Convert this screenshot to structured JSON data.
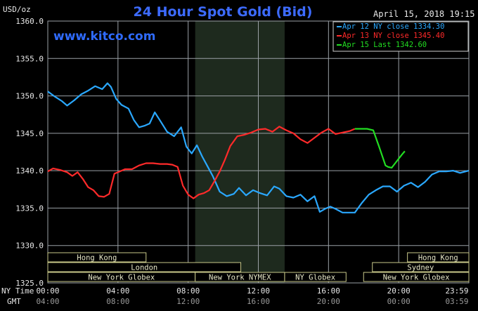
{
  "chart_data": {
    "type": "line",
    "title": "24 Hour Spot Gold (Bid)",
    "date_label": "April 15, 2018 19:15",
    "watermark": "www.kitco.com",
    "ylabel": "USD/oz",
    "ylim": [
      1325,
      1360
    ],
    "y_ticks": [
      "1360.0",
      "1355.0",
      "1350.0",
      "1345.0",
      "1340.0",
      "1335.0",
      "1330.0",
      "1325.0"
    ],
    "x_row_label_ny": "NY Time",
    "x_row_label_gmt": "GMT",
    "x_ticks_ny": [
      "00:00",
      "04:00",
      "08:00",
      "12:00",
      "16:00",
      "20:00",
      "23:59"
    ],
    "x_ticks_gmt": [
      "04:00",
      "08:00",
      "12:00",
      "16:00",
      "20:00",
      "00:00",
      "03:59"
    ],
    "legend": [
      {
        "label": "Apr 12 NY close 1334.30",
        "color": "#2aa8ff"
      },
      {
        "label": "Apr 13 NY close 1345.40",
        "color": "#ff2a2a"
      },
      {
        "label": "Apr 15 Last 1342.60",
        "color": "#22dd22"
      }
    ],
    "markets": [
      {
        "label": "Hong Kong",
        "start": 0.0,
        "end": 5.6
      },
      {
        "label": "Hong Kong",
        "start": 20.5,
        "end": 24.0
      },
      {
        "label": "London",
        "start": 0.0,
        "end": 11.0
      },
      {
        "label": "Sydney",
        "start": 18.5,
        "end": 24.0
      },
      {
        "label": "New York Globex",
        "start": 0.0,
        "end": 8.4
      },
      {
        "label": "New York NYMEX",
        "start": 8.4,
        "end": 13.5
      },
      {
        "label": "NY Globex",
        "start": 13.5,
        "end": 17.0
      },
      {
        "label": "New York Globex",
        "start": 18.0,
        "end": 24.0
      }
    ],
    "nymex_session": [
      8.4,
      13.5
    ],
    "series": [
      {
        "name": "Apr 12 NY close 1334.30",
        "color": "#2aa8ff",
        "x": [
          0.0,
          0.4,
          0.8,
          1.1,
          1.5,
          1.9,
          2.3,
          2.7,
          3.1,
          3.4,
          3.6,
          3.9,
          4.2,
          4.6,
          4.9,
          5.2,
          5.5,
          5.8,
          6.1,
          6.4,
          6.8,
          7.2,
          7.6,
          7.9,
          8.2,
          8.5,
          8.8,
          9.1,
          9.4,
          9.8,
          10.2,
          10.6,
          10.9,
          11.3,
          11.7,
          12.1,
          12.5,
          12.9,
          13.2,
          13.6,
          14.0,
          14.4,
          14.8,
          15.2,
          15.5,
          15.8,
          16.1,
          16.4,
          16.8,
          17.2,
          17.5,
          17.9,
          18.3,
          18.7,
          19.1,
          19.5,
          19.9,
          20.3,
          20.7,
          21.1,
          21.5,
          21.9,
          22.3,
          22.7,
          23.1,
          23.5,
          23.99
        ],
        "values": [
          1350.6,
          1349.9,
          1349.3,
          1348.7,
          1349.4,
          1350.2,
          1350.7,
          1351.3,
          1350.9,
          1351.7,
          1351.2,
          1349.6,
          1348.8,
          1348.3,
          1346.8,
          1345.8,
          1346.0,
          1346.3,
          1347.8,
          1346.7,
          1345.2,
          1344.6,
          1345.8,
          1343.2,
          1342.3,
          1343.4,
          1341.9,
          1340.6,
          1339.3,
          1337.2,
          1336.6,
          1336.9,
          1337.7,
          1336.7,
          1337.4,
          1337.0,
          1336.7,
          1337.9,
          1337.6,
          1336.6,
          1336.4,
          1336.8,
          1335.9,
          1336.6,
          1334.5,
          1334.9,
          1335.2,
          1334.9,
          1334.4,
          1334.4,
          1334.4,
          1335.7,
          1336.8,
          1337.4,
          1337.9,
          1337.9,
          1337.2,
          1338.0,
          1338.4,
          1337.8,
          1338.5,
          1339.5,
          1339.9,
          1339.9,
          1340.0,
          1339.7,
          1340.0
        ]
      },
      {
        "name": "Apr 13 NY close 1345.40",
        "color": "#ff2a2a",
        "x": [
          0.0,
          0.3,
          0.7,
          1.1,
          1.4,
          1.7,
          2.0,
          2.3,
          2.6,
          2.9,
          3.2,
          3.5,
          3.8,
          4.1,
          4.4,
          4.8,
          5.2,
          5.6,
          6.0,
          6.4,
          6.8,
          7.1,
          7.4,
          7.7,
          8.0,
          8.3,
          8.6,
          8.9,
          9.2,
          9.5,
          9.8,
          10.1,
          10.4,
          10.8,
          11.2,
          11.6,
          12.0,
          12.4,
          12.8,
          13.2,
          13.6,
          14.0,
          14.4,
          14.8,
          15.2,
          15.6,
          16.0,
          16.4,
          16.8,
          17.2,
          17.5
        ],
        "values": [
          1339.9,
          1340.3,
          1340.1,
          1339.8,
          1339.3,
          1339.8,
          1338.9,
          1337.8,
          1337.4,
          1336.6,
          1336.5,
          1336.9,
          1339.6,
          1339.9,
          1340.2,
          1340.2,
          1340.7,
          1341.0,
          1341.0,
          1340.9,
          1340.9,
          1340.8,
          1340.5,
          1338.0,
          1336.8,
          1336.3,
          1336.8,
          1337.0,
          1337.4,
          1338.6,
          1339.9,
          1341.5,
          1343.3,
          1344.6,
          1344.8,
          1345.1,
          1345.5,
          1345.6,
          1345.2,
          1345.9,
          1345.4,
          1345.0,
          1344.2,
          1343.7,
          1344.4,
          1345.1,
          1345.6,
          1344.9,
          1345.1,
          1345.3,
          1345.6
        ]
      },
      {
        "name": "Apr 15 Last 1342.60",
        "color": "#22dd22",
        "x": [
          17.5,
          18.2,
          18.55,
          18.9,
          19.25,
          19.4,
          19.6,
          19.8,
          20.0,
          20.2,
          20.35
        ],
        "values": [
          1345.6,
          1345.6,
          1345.4,
          1343.1,
          1340.7,
          1340.5,
          1340.4,
          1341.0,
          1341.6,
          1342.2,
          1342.6
        ]
      }
    ]
  }
}
